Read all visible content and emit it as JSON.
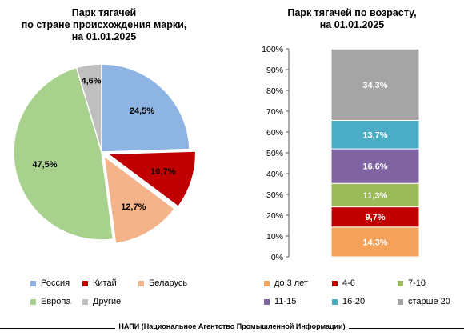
{
  "chart_data": [
    {
      "type": "pie",
      "title_line1": "Парк тягачей",
      "title_line2": "по стране происхождения марки,",
      "title_line3": "на 01.01.2025",
      "slices": [
        {
          "name": "Россия",
          "value": 24.5,
          "label": "24,5%",
          "color": "#8db4e2"
        },
        {
          "name": "Китай",
          "value": 10.7,
          "label": "10,7%",
          "color": "#c00000"
        },
        {
          "name": "Беларусь",
          "value": 12.7,
          "label": "12,7%",
          "color": "#f5b38a"
        },
        {
          "name": "Европа",
          "value": 47.5,
          "label": "47,5%",
          "color": "#a9d18e"
        },
        {
          "name": "Другие",
          "value": 4.6,
          "label": "4,6%",
          "color": "#bfbfbf"
        }
      ],
      "legend": [
        "Россия",
        "Китай",
        "Беларусь",
        "Европа",
        "Другие"
      ]
    },
    {
      "type": "bar",
      "stacked": true,
      "title_line1": "Парк тягачей по возрасту,",
      "title_line2": "на 01.01.2025",
      "ylim": [
        0,
        100
      ],
      "yticks": [
        "0%",
        "10%",
        "20%",
        "30%",
        "40%",
        "50%",
        "60%",
        "70%",
        "80%",
        "90%",
        "100%"
      ],
      "series": [
        {
          "name": "до 3 лет",
          "value": 14.3,
          "label": "14,3%",
          "color": "#f4a259"
        },
        {
          "name": "4-6",
          "value": 9.7,
          "label": "9,7%",
          "color": "#c00000"
        },
        {
          "name": "7-10",
          "value": 11.3,
          "label": "11,3%",
          "color": "#9bbb59"
        },
        {
          "name": "11-15",
          "value": 16.6,
          "label": "16,6%",
          "color": "#8064a2"
        },
        {
          "name": "16-20",
          "value": 13.7,
          "label": "13,7%",
          "color": "#4bacc6"
        },
        {
          "name": "старше 20",
          "value": 34.3,
          "label": "34,3%",
          "color": "#a5a5a5"
        }
      ]
    }
  ],
  "footer": "НАПИ (Национальное Агентство Промышленной Информации)"
}
